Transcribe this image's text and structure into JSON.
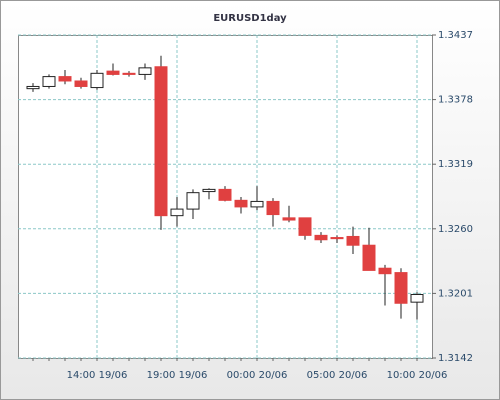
{
  "chart_data": {
    "type": "candlestick",
    "title": "EURUSD1day",
    "categories": [
      null,
      null,
      null,
      null,
      "14:00 19/06",
      null,
      null,
      null,
      null,
      "19:00 19/06",
      null,
      null,
      null,
      null,
      "00:00 20/06",
      null,
      null,
      null,
      null,
      "05:00 20/06",
      null,
      null,
      null,
      null,
      "10:00 20/06"
    ],
    "open": [
      1.3388,
      1.339,
      1.3399,
      1.3395,
      1.3389,
      1.3404,
      1.3402,
      1.3401,
      1.3408,
      1.3272,
      1.3278,
      1.3294,
      1.3296,
      1.3286,
      1.328,
      1.3285,
      1.327,
      1.327,
      1.3254,
      1.3252,
      1.3253,
      1.3245,
      1.3224,
      1.322,
      1.3193
    ],
    "high": [
      1.3393,
      1.3401,
      1.3405,
      1.3398,
      1.3405,
      1.3411,
      1.3404,
      1.3411,
      1.3418,
      1.3289,
      1.3296,
      1.3297,
      1.3299,
      1.3289,
      1.3299,
      1.3288,
      1.3281,
      1.327,
      1.3257,
      1.3254,
      1.3262,
      1.3261,
      1.3227,
      1.3224,
      1.3202
    ],
    "low": [
      1.3385,
      1.3388,
      1.3392,
      1.3388,
      1.3387,
      1.34,
      1.3399,
      1.3396,
      1.3259,
      1.3262,
      1.3269,
      1.3287,
      1.3285,
      1.3274,
      1.3277,
      1.3262,
      1.3266,
      1.325,
      1.3247,
      1.3247,
      1.3237,
      1.3222,
      1.319,
      1.3178,
      1.3177
    ],
    "close": [
      1.339,
      1.3399,
      1.3395,
      1.339,
      1.3402,
      1.3401,
      1.3401,
      1.3407,
      1.3272,
      1.3278,
      1.3293,
      1.3296,
      1.3286,
      1.328,
      1.3285,
      1.3273,
      1.3268,
      1.3254,
      1.325,
      1.3251,
      1.3245,
      1.3222,
      1.3219,
      1.3192,
      1.32
    ],
    "up_color": "#ffffff",
    "down_color": "#e04040",
    "ylim": [
      1.3142,
      1.3437
    ],
    "yticks": [
      1.3142,
      1.3201,
      {
        "value": 1.326,
        "label": "1.3260"
      },
      1.3319,
      1.3378,
      1.3437
    ],
    "grid": true
  }
}
